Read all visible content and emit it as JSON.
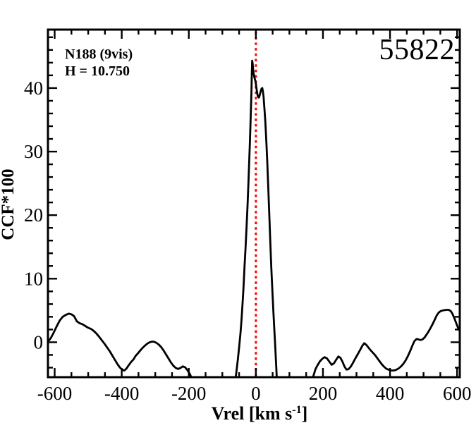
{
  "page": {
    "background": "#ffffff",
    "foreground": "#000000"
  },
  "annotations": {
    "cluster_label": "N188 (9vis)",
    "magnitude_label": "H = 10.750",
    "star_id": "55822"
  },
  "chart_data": {
    "type": "line",
    "title": "",
    "xlabel_prefix": "Vrel [km s",
    "xlabel_sup": "-1",
    "xlabel_suffix": "]",
    "ylabel": "CCF*100",
    "xlim": [
      -620,
      608
    ],
    "ylim": [
      -5.5,
      49.2
    ],
    "x_major_ticks": [
      -600,
      -400,
      -200,
      0,
      200,
      400,
      600
    ],
    "x_tick_labels": [
      "-600",
      "-400",
      "-200",
      "0",
      "200",
      "400",
      "600"
    ],
    "x_minor_step": 50,
    "y_major_ticks": [
      0,
      10,
      20,
      30,
      40
    ],
    "y_tick_labels": [
      "0",
      "10",
      "20",
      "30",
      "40"
    ],
    "y_minor_step": 2,
    "grid": false,
    "legend": null,
    "axis_color": "#000000",
    "curve_color": "#000000",
    "background_color": "#ffffff",
    "marker_vline": {
      "x": 0,
      "color": "#ff0000",
      "style": "dotted"
    },
    "peak_summary": {
      "main_peak_ccf": 44.3,
      "main_peak_vrel": -11,
      "dip_ccf": 38.5,
      "secondary_peak_ccf": 40.0,
      "secondary_peak_vrel": 18
    },
    "series": [
      {
        "name": "CCF",
        "points": [
          [
            -620,
            0.1
          ],
          [
            -612,
            0.6
          ],
          [
            -603,
            1.5
          ],
          [
            -594,
            2.5
          ],
          [
            -585,
            3.4
          ],
          [
            -576,
            4.0
          ],
          [
            -567,
            4.3
          ],
          [
            -558,
            4.5
          ],
          [
            -550,
            4.4
          ],
          [
            -542,
            4.1
          ],
          [
            -534,
            3.3
          ],
          [
            -526,
            3.0
          ],
          [
            -518,
            2.85
          ],
          [
            -510,
            2.6
          ],
          [
            -501,
            2.3
          ],
          [
            -492,
            2.1
          ],
          [
            -484,
            1.8
          ],
          [
            -476,
            1.4
          ],
          [
            -468,
            0.9
          ],
          [
            -460,
            0.35
          ],
          [
            -452,
            -0.2
          ],
          [
            -444,
            -0.8
          ],
          [
            -436,
            -1.4
          ],
          [
            -428,
            -2.1
          ],
          [
            -420,
            -2.8
          ],
          [
            -412,
            -3.5
          ],
          [
            -405,
            -4.0
          ],
          [
            -398,
            -4.35
          ],
          [
            -392,
            -4.45
          ],
          [
            -386,
            -4.15
          ],
          [
            -379,
            -3.6
          ],
          [
            -372,
            -3.1
          ],
          [
            -365,
            -2.7
          ],
          [
            -358,
            -2.1
          ],
          [
            -351,
            -1.7
          ],
          [
            -344,
            -1.25
          ],
          [
            -337,
            -0.85
          ],
          [
            -330,
            -0.5
          ],
          [
            -323,
            -0.2
          ],
          [
            -316,
            0.0
          ],
          [
            -309,
            0.1
          ],
          [
            -302,
            0.05
          ],
          [
            -295,
            -0.15
          ],
          [
            -288,
            -0.45
          ],
          [
            -281,
            -0.85
          ],
          [
            -274,
            -1.4
          ],
          [
            -267,
            -2.0
          ],
          [
            -260,
            -2.6
          ],
          [
            -253,
            -3.2
          ],
          [
            -246,
            -3.7
          ],
          [
            -239,
            -4.05
          ],
          [
            -232,
            -4.2
          ],
          [
            -225,
            -4.05
          ],
          [
            -218,
            -3.8
          ],
          [
            -211,
            -3.95
          ],
          [
            -204,
            -4.4
          ],
          [
            -197,
            -5.0
          ],
          [
            -191,
            -5.7
          ],
          [
            -185,
            -6.6
          ],
          [
            -178,
            -8.0
          ],
          [
            -165,
            -9.0
          ],
          [
            -80,
            -9.0
          ],
          [
            -66,
            -7.8
          ],
          [
            -62,
            -6.2
          ],
          [
            -58,
            -4.6
          ],
          [
            -54,
            -2.8
          ],
          [
            -50,
            -0.8
          ],
          [
            -46,
            1.4
          ],
          [
            -43,
            3.4
          ],
          [
            -40,
            5.8
          ],
          [
            -37,
            8.6
          ],
          [
            -34,
            11.8
          ],
          [
            -31,
            14.6
          ],
          [
            -28,
            17.8
          ],
          [
            -25,
            21.4
          ],
          [
            -22,
            25.4
          ],
          [
            -20,
            28.2
          ],
          [
            -18,
            31.2
          ],
          [
            -16,
            34.4
          ],
          [
            -14,
            38.0
          ],
          [
            -13,
            40.0
          ],
          [
            -12,
            42.4
          ],
          [
            -11,
            44.3
          ],
          [
            -10,
            44.0
          ],
          [
            -9,
            43.4
          ],
          [
            -7,
            42.4
          ],
          [
            -5,
            41.8
          ],
          [
            -3,
            41.4
          ],
          [
            -1,
            41.0
          ],
          [
            1,
            40.3
          ],
          [
            3,
            39.5
          ],
          [
            5,
            38.9
          ],
          [
            7,
            38.6
          ],
          [
            9,
            38.5
          ],
          [
            11,
            38.8
          ],
          [
            13,
            39.2
          ],
          [
            15,
            39.6
          ],
          [
            17,
            39.9
          ],
          [
            19,
            40.0
          ],
          [
            21,
            39.5
          ],
          [
            23,
            38.6
          ],
          [
            25,
            37.2
          ],
          [
            28,
            34.8
          ],
          [
            31,
            31.8
          ],
          [
            34,
            28.4
          ],
          [
            37,
            24.4
          ],
          [
            40,
            20.0
          ],
          [
            43,
            15.8
          ],
          [
            46,
            11.8
          ],
          [
            49,
            8.2
          ],
          [
            52,
            5.0
          ],
          [
            55,
            2.0
          ],
          [
            57,
            0.0
          ],
          [
            59,
            -2.0
          ],
          [
            61,
            -4.2
          ],
          [
            63,
            -6.5
          ],
          [
            65,
            -8.5
          ],
          [
            75,
            -9.0
          ],
          [
            150,
            -9.0
          ],
          [
            160,
            -7.6
          ],
          [
            166,
            -6.4
          ],
          [
            172,
            -5.2
          ],
          [
            178,
            -4.2
          ],
          [
            184,
            -3.6
          ],
          [
            191,
            -3.0
          ],
          [
            198,
            -2.6
          ],
          [
            205,
            -2.35
          ],
          [
            212,
            -2.55
          ],
          [
            219,
            -3.05
          ],
          [
            226,
            -3.55
          ],
          [
            233,
            -3.3
          ],
          [
            240,
            -2.7
          ],
          [
            246,
            -2.25
          ],
          [
            252,
            -2.45
          ],
          [
            258,
            -3.05
          ],
          [
            264,
            -3.8
          ],
          [
            270,
            -4.3
          ],
          [
            276,
            -4.25
          ],
          [
            282,
            -3.9
          ],
          [
            289,
            -3.3
          ],
          [
            296,
            -2.6
          ],
          [
            303,
            -1.95
          ],
          [
            310,
            -1.3
          ],
          [
            317,
            -0.6
          ],
          [
            323,
            -0.15
          ],
          [
            329,
            -0.4
          ],
          [
            335,
            -0.8
          ],
          [
            341,
            -1.2
          ],
          [
            348,
            -1.6
          ],
          [
            355,
            -2.0
          ],
          [
            362,
            -2.5
          ],
          [
            369,
            -3.0
          ],
          [
            376,
            -3.5
          ],
          [
            383,
            -3.9
          ],
          [
            390,
            -4.2
          ],
          [
            397,
            -4.35
          ],
          [
            404,
            -4.45
          ],
          [
            411,
            -4.45
          ],
          [
            418,
            -4.35
          ],
          [
            425,
            -4.15
          ],
          [
            432,
            -3.85
          ],
          [
            439,
            -3.45
          ],
          [
            446,
            -2.9
          ],
          [
            453,
            -2.2
          ],
          [
            460,
            -1.4
          ],
          [
            467,
            -0.5
          ],
          [
            473,
            0.2
          ],
          [
            479,
            0.5
          ],
          [
            485,
            0.45
          ],
          [
            491,
            0.35
          ],
          [
            497,
            0.45
          ],
          [
            503,
            0.75
          ],
          [
            509,
            1.2
          ],
          [
            515,
            1.7
          ],
          [
            521,
            2.25
          ],
          [
            527,
            2.85
          ],
          [
            533,
            3.5
          ],
          [
            539,
            4.2
          ],
          [
            545,
            4.65
          ],
          [
            551,
            4.9
          ],
          [
            557,
            5.0
          ],
          [
            563,
            5.05
          ],
          [
            569,
            5.1
          ],
          [
            575,
            5.1
          ],
          [
            581,
            4.9
          ],
          [
            586,
            4.5
          ],
          [
            591,
            3.9
          ],
          [
            596,
            3.2
          ],
          [
            601,
            2.5
          ],
          [
            605,
            2.0
          ],
          [
            608,
            1.8
          ]
        ]
      }
    ]
  }
}
